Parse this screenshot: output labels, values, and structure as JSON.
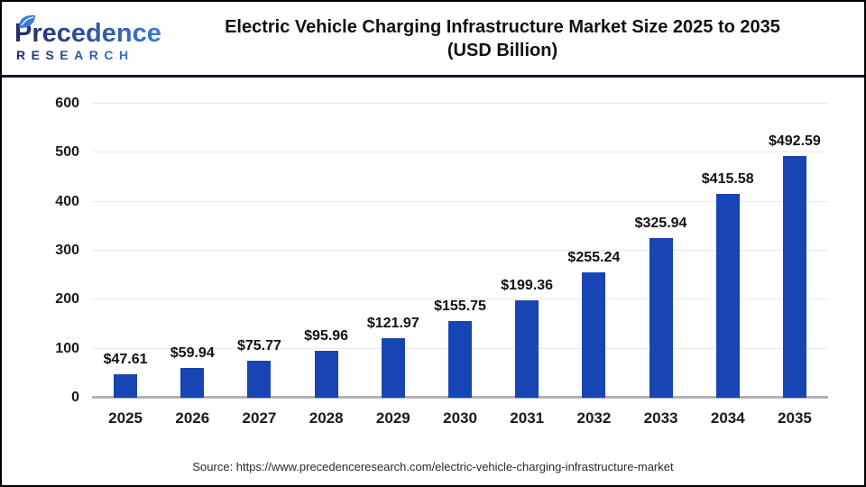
{
  "header": {
    "logo": {
      "brand": "Precedence",
      "sub": "RESEARCH",
      "color_dark": "#232a68",
      "color_light": "#3b7bd8"
    },
    "title_line1": "Electric Vehicle Charging Infrastructure Market Size 2025 to 2035",
    "title_line2": "(USD Billion)"
  },
  "chart_data": {
    "type": "bar",
    "title": "Electric Vehicle Charging Infrastructure Market Size 2025 to 2035 (USD Billion)",
    "categories": [
      "2025",
      "2026",
      "2027",
      "2028",
      "2029",
      "2030",
      "2031",
      "2032",
      "2033",
      "2034",
      "2035"
    ],
    "values": [
      47.61,
      59.94,
      75.77,
      95.96,
      121.97,
      155.75,
      199.36,
      255.24,
      325.94,
      415.58,
      492.59
    ],
    "value_labels": [
      "$47.61",
      "$59.94",
      "$75.77",
      "$95.96",
      "$121.97",
      "$155.75",
      "$199.36",
      "$255.24",
      "$325.94",
      "$415.58",
      "$492.59"
    ],
    "xlabel": "",
    "ylabel": "",
    "ylim": [
      0,
      600
    ],
    "yticks": [
      0,
      100,
      200,
      300,
      400,
      500,
      600
    ],
    "grid": true,
    "legend": false,
    "bar_color": "#1845b4",
    "gridline_color": "#e9e9e9",
    "axis_line_color": "#b3b1b5"
  },
  "footer": {
    "source": "Source: https://www.precedenceresearch.com/electric-vehicle-charging-infrastructure-market"
  }
}
